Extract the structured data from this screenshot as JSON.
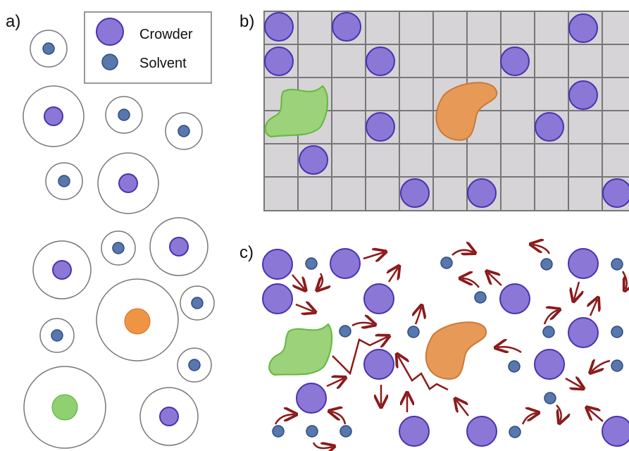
{
  "panels": [
    {
      "label": "a)"
    },
    {
      "label": "b)"
    },
    {
      "label": "c)"
    }
  ],
  "legend": [
    {
      "label": "Crowder"
    },
    {
      "label": "Solvent"
    }
  ]
}
